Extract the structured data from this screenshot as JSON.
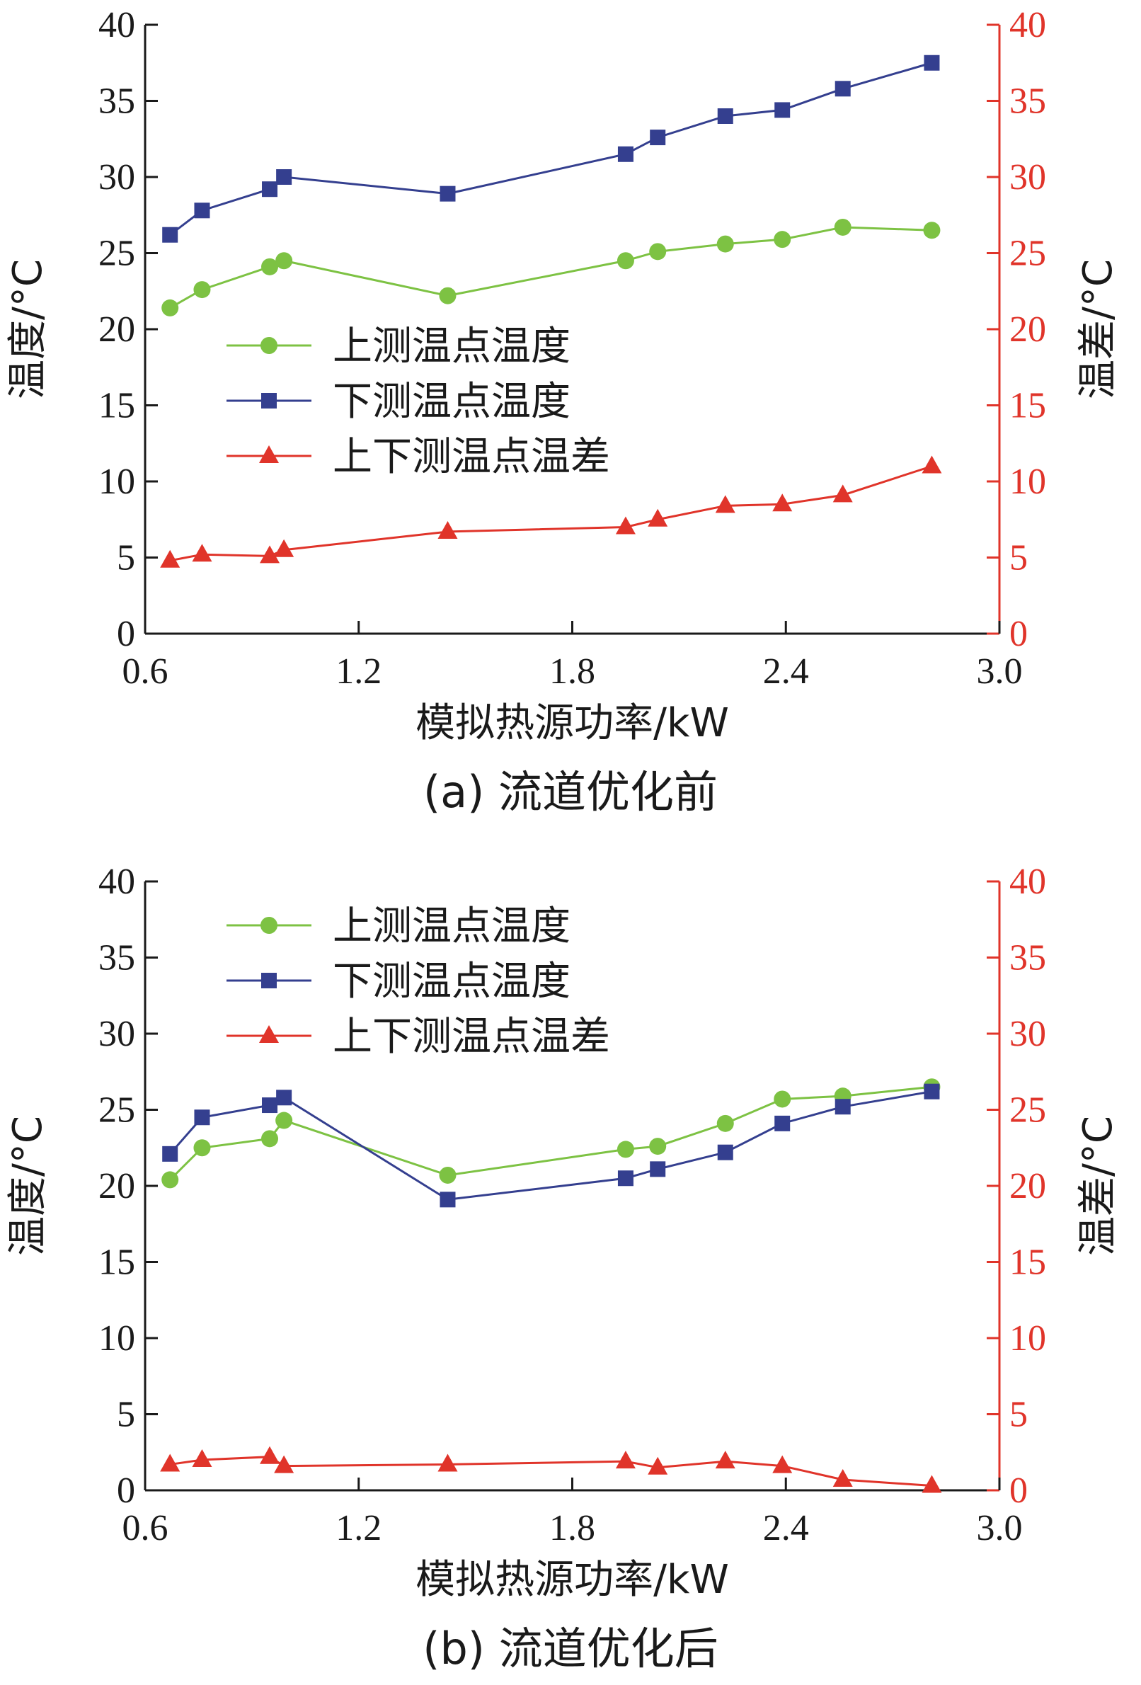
{
  "colors": {
    "upper": "#7dc243",
    "lower": "#343f8f",
    "diff": "#e0342a",
    "axis_left": "#1a1a1a",
    "axis_right": "#e0342a"
  },
  "chart_data": [
    {
      "type": "line",
      "caption": "(a)  流道优化前",
      "xlabel": "模拟热源功率/kW",
      "ylabel": "温度/°C",
      "y2label": "温差/°C",
      "xlim": [
        0.6,
        3.0
      ],
      "ylim": [
        0,
        40
      ],
      "y2lim": [
        0,
        40
      ],
      "xticks": [
        "0.6",
        "1.2",
        "1.8",
        "2.4",
        "3.0"
      ],
      "yticks": [
        "0",
        "5",
        "10",
        "15",
        "20",
        "25",
        "30",
        "35",
        "40"
      ],
      "legend": "inside-left",
      "grid": false,
      "x": [
        0.67,
        0.76,
        0.95,
        0.99,
        1.45,
        1.95,
        2.04,
        2.23,
        2.39,
        2.56,
        2.81
      ],
      "series": [
        {
          "name": "上测温点温度",
          "marker": "circle",
          "color": "#7dc243",
          "axis": "left",
          "values": [
            21.4,
            22.6,
            24.1,
            24.5,
            22.2,
            24.5,
            25.1,
            25.6,
            25.9,
            26.7,
            26.5
          ]
        },
        {
          "name": "下测温点温度",
          "marker": "square",
          "color": "#343f8f",
          "axis": "left",
          "values": [
            26.2,
            27.8,
            29.2,
            30.0,
            28.9,
            31.5,
            32.6,
            34.0,
            34.4,
            35.8,
            37.5
          ]
        },
        {
          "name": "上下测温点温差",
          "marker": "triangle",
          "color": "#e0342a",
          "axis": "right",
          "values": [
            4.8,
            5.2,
            5.1,
            5.5,
            6.7,
            7.0,
            7.5,
            8.4,
            8.5,
            9.1,
            11.0
          ]
        }
      ]
    },
    {
      "type": "line",
      "caption": "(b)  流道优化后",
      "xlabel": "模拟热源功率/kW",
      "ylabel": "温度/°C",
      "y2label": "温差/°C",
      "xlim": [
        0.6,
        3.0
      ],
      "ylim": [
        0,
        40
      ],
      "y2lim": [
        0,
        40
      ],
      "xticks": [
        "0.6",
        "1.2",
        "1.8",
        "2.4",
        "3.0"
      ],
      "yticks": [
        "0",
        "5",
        "10",
        "15",
        "20",
        "25",
        "30",
        "35",
        "40"
      ],
      "legend": "top-left",
      "grid": false,
      "x": [
        0.67,
        0.76,
        0.95,
        0.99,
        1.45,
        1.95,
        2.04,
        2.23,
        2.39,
        2.56,
        2.81
      ],
      "series": [
        {
          "name": "上测温点温度",
          "marker": "circle",
          "color": "#7dc243",
          "axis": "left",
          "values": [
            20.4,
            22.5,
            23.1,
            24.3,
            20.7,
            22.4,
            22.6,
            24.1,
            25.7,
            25.9,
            26.5
          ]
        },
        {
          "name": "下测温点温度",
          "marker": "square",
          "color": "#343f8f",
          "axis": "left",
          "values": [
            22.1,
            24.5,
            25.3,
            25.8,
            19.1,
            20.5,
            21.1,
            22.2,
            24.1,
            25.2,
            26.2
          ]
        },
        {
          "name": "上下测温点温差",
          "marker": "triangle",
          "color": "#e0342a",
          "axis": "right",
          "values": [
            1.7,
            2.0,
            2.2,
            1.6,
            1.7,
            1.9,
            1.5,
            1.9,
            1.6,
            0.7,
            0.3
          ]
        }
      ]
    }
  ]
}
